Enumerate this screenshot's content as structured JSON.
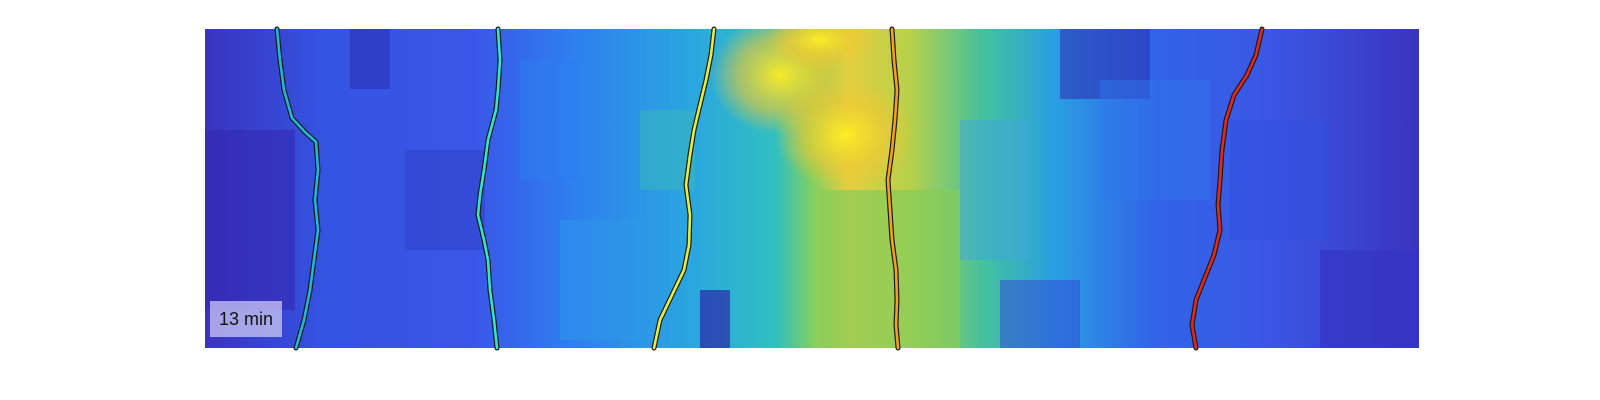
{
  "timestamp_label": "13 min",
  "image": {
    "description_free": true,
    "colormap": [
      "#3a2fb8",
      "#3259e6",
      "#2f86f0",
      "#26b5d8",
      "#3cc89a",
      "#9bd04b",
      "#ecc63a",
      "#f8e82a"
    ]
  },
  "tracks": [
    {
      "id": 1,
      "color": "#22b6d8"
    },
    {
      "id": 2,
      "color": "#30e6d0"
    },
    {
      "id": 3,
      "color": "#e4f040"
    },
    {
      "id": 4,
      "color": "#f4a21e"
    },
    {
      "id": 5,
      "color": "#e4281c"
    }
  ]
}
